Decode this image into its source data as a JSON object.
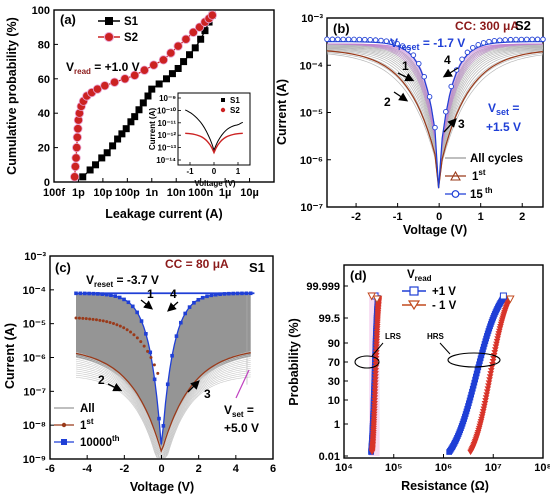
{
  "chart_data": [
    {
      "type": "scatter",
      "panel": "(a)",
      "xlabel": "Leakage current (A)",
      "ylabel": "Cumulative probability (%)",
      "xscale": "log",
      "xlim": [
        1e-13,
        0.0001
      ],
      "ylim": [
        0,
        100
      ],
      "xticks": [
        "100f",
        "1p",
        "10p",
        "100p",
        "1n",
        "10n",
        "100n",
        "1µ",
        "10µ"
      ],
      "yticks": [
        "0",
        "20",
        "40",
        "60",
        "80",
        "100"
      ],
      "annotation_prefix": "V",
      "annotation_sub": "read",
      "annotation_value": " = +1.0 V",
      "legend_position": "top-left",
      "series": [
        {
          "name": "S1",
          "marker": "square",
          "color": "#000000",
          "x": [
            1.5e-12,
            3e-12,
            5e-12,
            9e-12,
            1.5e-11,
            2.5e-11,
            4e-11,
            6e-11,
            9e-11,
            1.4e-10,
            2e-10,
            3e-10,
            4.5e-10,
            7e-10,
            1e-09,
            2e-09,
            4e-09,
            7e-09,
            1.2e-08,
            2e-08,
            3.5e-08,
            6e-08,
            1e-07,
            1.5e-07,
            2.2e-07,
            3e-07
          ],
          "y": [
            3,
            7,
            10,
            14,
            17,
            21,
            25,
            28,
            31,
            35,
            38,
            42,
            46,
            50,
            54,
            57,
            60,
            63,
            66,
            70,
            74,
            78,
            83,
            88,
            93,
            97
          ]
        },
        {
          "name": "S2",
          "marker": "circle",
          "color": "#cc2222",
          "x": [
            7e-13,
            7.5e-13,
            8e-13,
            8.5e-13,
            9e-13,
            9.5e-13,
            1e-12,
            1.1e-12,
            1.3e-12,
            1.6e-12,
            2.2e-12,
            3.5e-12,
            6e-12,
            1.2e-11,
            3e-11,
            8e-11,
            2e-10,
            5e-10,
            1.2e-09,
            3e-09,
            6e-09,
            1.2e-08,
            2.5e-08,
            5e-08,
            9e-08,
            1.5e-07,
            2.2e-07,
            3e-07
          ],
          "y": [
            3,
            9,
            14,
            20,
            26,
            31,
            36,
            40,
            44,
            47,
            50,
            52,
            54,
            56,
            58,
            60,
            62,
            65,
            68,
            71,
            75,
            79,
            83,
            87,
            90,
            93,
            95,
            97
          ]
        }
      ]
    },
    {
      "type": "line",
      "panel": "(a) inset",
      "xlabel": "Voltage (V)",
      "ylabel": "Current (A)",
      "xticks": [
        "-1",
        "0",
        "1"
      ],
      "yticks": [
        "10⁻⁹",
        "10⁻¹⁰",
        "10⁻¹¹",
        "10⁻¹²",
        "10⁻¹³",
        "10⁻¹⁴"
      ],
      "series_names": [
        "S1",
        "S2"
      ]
    },
    {
      "type": "line",
      "panel": "(b)",
      "sample": "S2",
      "xlabel": "Voltage (V)",
      "ylabel": "Current (A)",
      "yscale": "log",
      "xlim": [
        -2.7,
        2.5
      ],
      "ylim": [
        1e-07,
        0.001
      ],
      "xticks": [
        "-2",
        "-1",
        "0",
        "1",
        "2"
      ],
      "yticks": [
        "10⁻⁷",
        "10⁻⁶",
        "10⁻⁵",
        "10⁻⁴",
        "10⁻³"
      ],
      "cc_label": "CC: 300 μA",
      "vreset_prefix": "V",
      "vreset_sub": "reset",
      "vreset_value": " = -1.7 V",
      "vset_prefix": "V",
      "vset_sub": "set",
      "vset_value": " =",
      "vset_value2": "+1.5 V",
      "sweep_order": [
        "1",
        "2",
        "3",
        "4"
      ],
      "legend": {
        "all": "All cycles",
        "first_base": "1",
        "first_sup": "st",
        "last_base": "15",
        "last_sup": " th"
      }
    },
    {
      "type": "line",
      "panel": "(c)",
      "sample": "S1",
      "xlabel": "Voltage (V)",
      "ylabel": "Current (A)",
      "yscale": "log",
      "xlim": [
        -6,
        6
      ],
      "ylim": [
        1e-09,
        0.001
      ],
      "xticks": [
        "-6",
        "-4",
        "-2",
        "0",
        "2",
        "4",
        "6"
      ],
      "yticks": [
        "10⁻⁹",
        "10⁻⁸",
        "10⁻⁷",
        "10⁻⁶",
        "10⁻⁵",
        "10⁻⁴",
        "10⁻³"
      ],
      "cc_label": "CC = 80 μA",
      "vreset_prefix": "V",
      "vreset_sub": "reset",
      "vreset_value": " = -3.7 V",
      "vset_prefix": "V",
      "vset_sub": "set",
      "vset_value": " =",
      "vset_value2": "+5.0 V",
      "sweep_order": [
        "1",
        "2",
        "3",
        "4"
      ],
      "legend": {
        "all": "All",
        "first_base": "1",
        "first_sup": "st",
        "last_base": "10000",
        "last_sup": "th"
      }
    },
    {
      "type": "scatter",
      "panel": "(d)",
      "xlabel": "Resistance (Ω)",
      "ylabel": "Probability (%)",
      "xscale": "log",
      "yscale": "probit",
      "xlim": [
        10000.0,
        100000000.0
      ],
      "xticks": [
        "10⁴",
        "10⁵",
        "10⁶",
        "10⁷",
        "10⁸"
      ],
      "yticks": [
        "0.01",
        "1",
        "10",
        "30",
        "70",
        "90",
        "99.5",
        "99.999"
      ],
      "legend_title_prefix": "V",
      "legend_title_sub": "read",
      "series": [
        {
          "name": "+1 V",
          "marker": "square-open",
          "color": "#1f3fd6"
        },
        {
          "name": "- 1 V",
          "marker": "triangle-open",
          "color": "#c24a1f"
        }
      ],
      "state_labels": [
        "LRS",
        "HRS"
      ],
      "LRS_range_ohm": [
        35000.0,
        48000.0
      ],
      "HRS_range_ohm_plus1V": [
        1300000.0,
        16000000.0
      ],
      "HRS_range_ohm_minus1V": [
        3500000.0,
        22000000.0
      ]
    }
  ]
}
